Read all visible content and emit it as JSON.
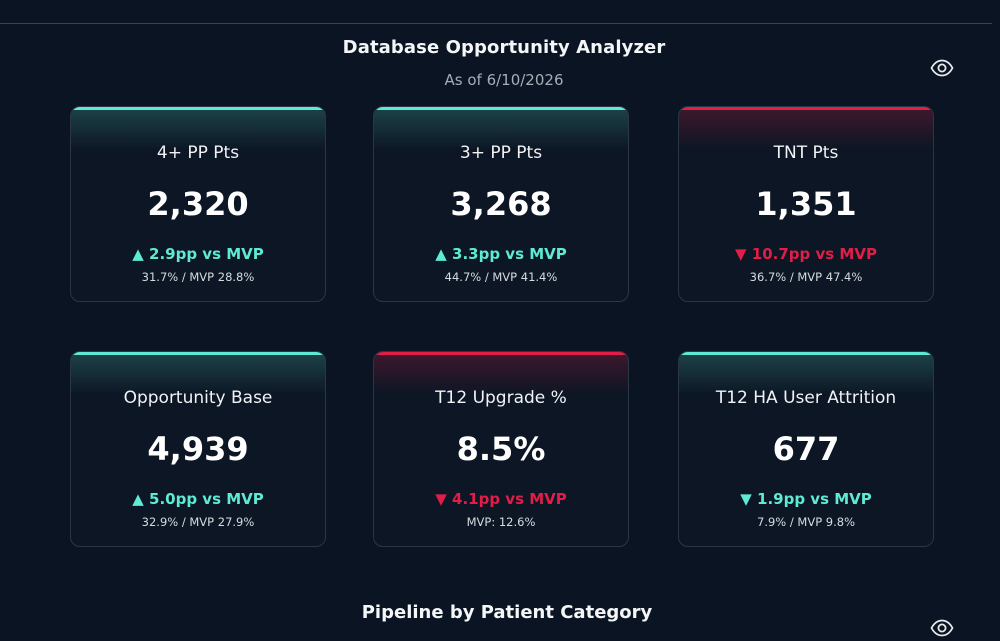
{
  "header": {
    "title": "Database Opportunity Analyzer",
    "subtitle": "As of 6/10/2026"
  },
  "icons": {
    "visibility": "eye-icon"
  },
  "colors": {
    "positive": "#5eead4",
    "negative": "#e11d48",
    "background": "#0b1422"
  },
  "cards": [
    {
      "label": "4+ PP Pts",
      "value": "2,320",
      "arrow": "▲",
      "delta": "2.9pp vs MVP",
      "detail": "31.7% / MVP 28.8%"
    },
    {
      "label": "3+ PP Pts",
      "value": "3,268",
      "arrow": "▲",
      "delta": "3.3pp vs MVP",
      "detail": "44.7% / MVP 41.4%"
    },
    {
      "label": "TNT Pts",
      "value": "1,351",
      "arrow": "▼",
      "delta": "10.7pp vs MVP",
      "detail": "36.7% / MVP 47.4%"
    },
    {
      "label": "Opportunity Base",
      "value": "4,939",
      "arrow": "▲",
      "delta": "5.0pp vs MVP",
      "detail": "32.9% / MVP 27.9%"
    },
    {
      "label": "T12 Upgrade %",
      "value": "8.5%",
      "arrow": "▼",
      "delta": "4.1pp vs MVP",
      "detail": "MVP: 12.6%"
    },
    {
      "label": "T12 HA User Attrition",
      "value": "677",
      "arrow": "▼",
      "delta": "1.9pp vs MVP",
      "detail": "7.9% / MVP 9.8%"
    }
  ],
  "section": {
    "title": "Pipeline by Patient Category"
  }
}
